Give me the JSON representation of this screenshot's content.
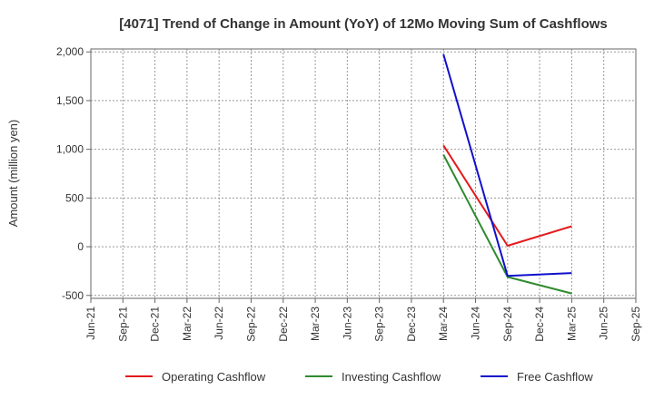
{
  "chart_data": {
    "type": "line",
    "title": "[4071]  Trend of Change in Amount (YoY) of 12Mo Moving Sum of Cashflows",
    "xlabel": "",
    "ylabel": "Amount (million yen)",
    "categories": [
      "Jun-21",
      "Sep-21",
      "Dec-21",
      "Mar-22",
      "Jun-22",
      "Sep-22",
      "Dec-22",
      "Mar-23",
      "Jun-23",
      "Sep-23",
      "Dec-23",
      "Mar-24",
      "Jun-24",
      "Sep-24",
      "Dec-24",
      "Mar-25",
      "Jun-25",
      "Sep-25"
    ],
    "yticks": [
      2000,
      1500,
      1000,
      500,
      0,
      -500
    ],
    "ytick_labels": [
      "2,000",
      "1,500",
      "1,000",
      "500",
      "0",
      "-500"
    ],
    "ylim": [
      -530,
      2030
    ],
    "grid": true,
    "legend_position": "bottom",
    "series": [
      {
        "name": "Operating Cashflow",
        "color": "#e41a1c",
        "values": [
          null,
          null,
          null,
          null,
          null,
          null,
          null,
          null,
          null,
          null,
          null,
          1040,
          null,
          10,
          null,
          210,
          null,
          null
        ]
      },
      {
        "name": "Investing Cashflow",
        "color": "#2e8b2e",
        "values": [
          null,
          null,
          null,
          null,
          null,
          null,
          null,
          null,
          null,
          null,
          null,
          945,
          null,
          -310,
          null,
          -480,
          null,
          null
        ]
      },
      {
        "name": "Free Cashflow",
        "color": "#1010cc",
        "values": [
          null,
          null,
          null,
          null,
          null,
          null,
          null,
          null,
          null,
          null,
          null,
          1975,
          null,
          -300,
          null,
          -270,
          null,
          null
        ]
      }
    ]
  }
}
